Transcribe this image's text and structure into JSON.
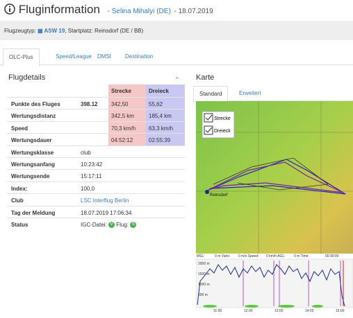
{
  "header": {
    "title": "Fluginformation",
    "pilot": "- Selina Mihalyi (DE)",
    "date": "- 18.07.2019"
  },
  "subheader": {
    "type_label": "Flugzeugtyp:",
    "aircraft": "ASW 19",
    "start_label": ", Startplatz:",
    "start": "Reinsdorf (DE / BB)"
  },
  "tabs": [
    "OLC-Plus",
    "Speed/League",
    "DMSt",
    "Destination"
  ],
  "details": {
    "title": "Flugdetails",
    "collapse": "^",
    "columns": [
      "Strecke",
      "Dreieck"
    ],
    "rows": [
      {
        "label": "Punkte des Fluges",
        "value": "398.12",
        "strecke": "342,50",
        "dreieck": "55,62"
      },
      {
        "label": "Wertungsdistanz",
        "strecke": "342,5 km",
        "dreieck": "185,4 km"
      },
      {
        "label": "Speed",
        "strecke": "70,3 km/h",
        "dreieck": "63,3 km/h"
      },
      {
        "label": "Wertungsdauer",
        "strecke": "04:52:12",
        "dreieck": "02:55:39"
      },
      {
        "label": "Wertungsklasse",
        "value": "club"
      },
      {
        "label": "Wertungsanfang",
        "value": "10:23:42"
      },
      {
        "label": "Wertungsende",
        "value": "15:17:11"
      },
      {
        "label": "Index:",
        "value": "100,0"
      },
      {
        "label": "Club",
        "value": "LSC Interflug Berlin"
      },
      {
        "label": "Tag der Meldung",
        "value": "18.07.2019 17:06:34"
      }
    ],
    "status": {
      "label": "Status",
      "igc": "IGC-Datei:",
      "igc_badge": "V",
      "flight": "Flug:",
      "flight_badge": "S"
    }
  },
  "map": {
    "title": "Karte",
    "tabs": [
      "Standard",
      "Erweitert"
    ],
    "legend": [
      "Strecke",
      "Dreieck"
    ],
    "place": "Reinsdorf"
  },
  "barogram": {
    "readout": [
      "MSL:",
      "0 m Vario:",
      "0 m/s Speed:",
      "0 km/h AGL:",
      "0 m Time:",
      "00:00:00"
    ],
    "ylabels": [
      "2000 m",
      "1500 m",
      "1000 m",
      "500 m"
    ],
    "xlabels": [
      "11:00",
      "12:00",
      "13:00",
      "14:00",
      "15:00"
    ]
  }
}
